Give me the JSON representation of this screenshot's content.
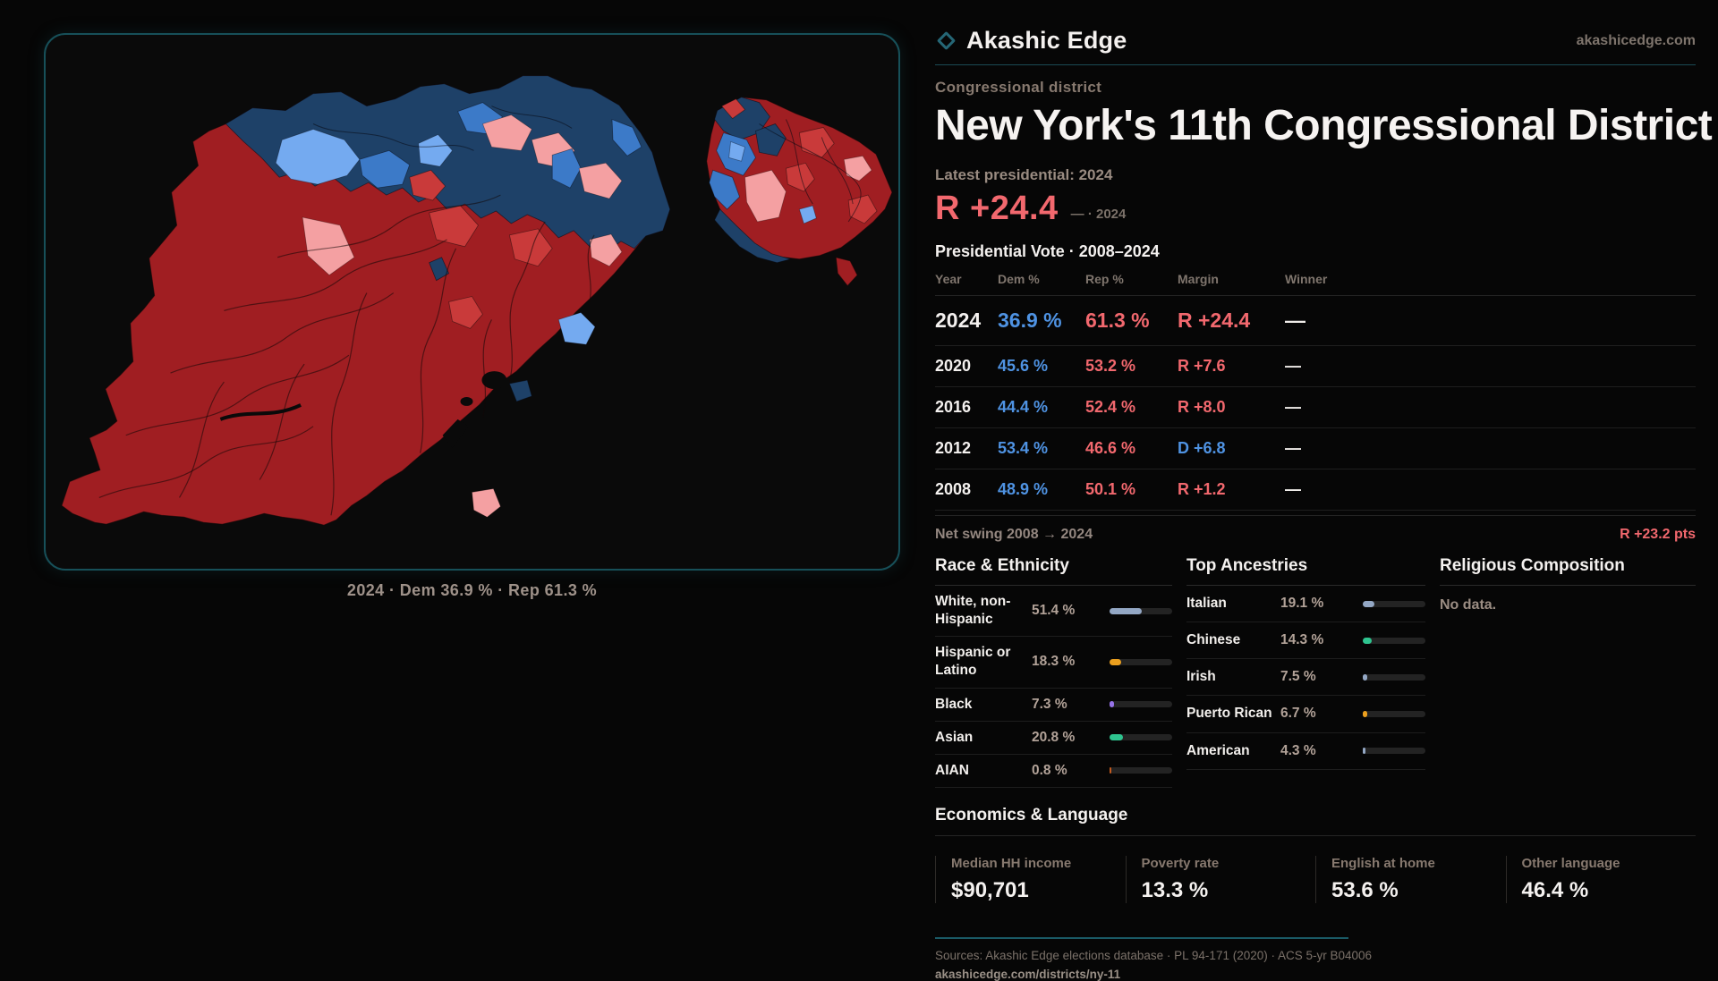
{
  "brand": {
    "name": "Akashic Edge",
    "domain": "akashicedge.com"
  },
  "page": {
    "eyebrow": "Congressional district",
    "title": "New York's 11th Congressional District",
    "latest_label": "Latest presidential: 2024",
    "headline_margin": "R +24.4",
    "headline_margin_note": "— · 2024"
  },
  "map": {
    "caption": "2024 · Dem 36.9 % · Rep 61.3 %"
  },
  "vote_table": {
    "title": "Presidential Vote · 2008–2024",
    "columns": [
      "Year",
      "Dem %",
      "Rep %",
      "Margin",
      "Winner"
    ],
    "rows": [
      {
        "year": "2024",
        "dem": "36.9 %",
        "rep": "61.3 %",
        "margin": "R +24.4",
        "margin_party": "R",
        "winner": "—",
        "emphasis": true
      },
      {
        "year": "2020",
        "dem": "45.6 %",
        "rep": "53.2 %",
        "margin": "R +7.6",
        "margin_party": "R",
        "winner": "—",
        "emphasis": false
      },
      {
        "year": "2016",
        "dem": "44.4 %",
        "rep": "52.4 %",
        "margin": "R +8.0",
        "margin_party": "R",
        "winner": "—",
        "emphasis": false
      },
      {
        "year": "2012",
        "dem": "53.4 %",
        "rep": "46.6 %",
        "margin": "D +6.8",
        "margin_party": "D",
        "winner": "—",
        "emphasis": false
      },
      {
        "year": "2008",
        "dem": "48.9 %",
        "rep": "50.1 %",
        "margin": "R +1.2",
        "margin_party": "R",
        "winner": "—",
        "emphasis": false
      }
    ],
    "net_swing_label": "Net swing 2008 → 2024",
    "net_swing_value": "R +23.2 pts"
  },
  "race_ethnicity": {
    "title": "Race & Ethnicity",
    "rows": [
      {
        "label": "White, non-Hispanic",
        "value": "51.4 %",
        "pct": 51.4,
        "color": "#93a7c4"
      },
      {
        "label": "Hispanic or Latino",
        "value": "18.3 %",
        "pct": 18.3,
        "color": "#eb9f1e"
      },
      {
        "label": "Black",
        "value": "7.3 %",
        "pct": 7.3,
        "color": "#9673e8"
      },
      {
        "label": "Asian",
        "value": "20.8 %",
        "pct": 20.8,
        "color": "#2ec48f"
      },
      {
        "label": "AIAN",
        "value": "0.8 %",
        "pct": 0.8,
        "color": "#c35a1f"
      }
    ]
  },
  "ancestries": {
    "title": "Top Ancestries",
    "rows": [
      {
        "label": "Italian",
        "value": "19.1 %",
        "pct": 19.1,
        "color": "#93a7c4"
      },
      {
        "label": "Chinese",
        "value": "14.3 %",
        "pct": 14.3,
        "color": "#2ec48f"
      },
      {
        "label": "Irish",
        "value": "7.5 %",
        "pct": 7.5,
        "color": "#93a7c4"
      },
      {
        "label": "Puerto Rican",
        "value": "6.7 %",
        "pct": 6.7,
        "color": "#eb9f1e"
      },
      {
        "label": "American",
        "value": "4.3 %",
        "pct": 4.3,
        "color": "#93a7c4"
      }
    ]
  },
  "religion": {
    "title": "Religious Composition",
    "empty": "No data."
  },
  "economics": {
    "title": "Economics & Language",
    "stats": [
      {
        "label": "Median HH income",
        "value": "$90,701"
      },
      {
        "label": "Poverty rate",
        "value": "13.3 %"
      },
      {
        "label": "English at home",
        "value": "53.6 %"
      },
      {
        "label": "Other language",
        "value": "46.4 %"
      }
    ]
  },
  "footer": {
    "sources": "Sources: Akashic Edge elections database · PL 94-171 (2020) · ACS 5-yr B04006",
    "permalink": "akashicedge.com/districts/ny-11"
  },
  "colors": {
    "accent_teal": "#175059",
    "dem_blue": "#4f93e3",
    "rep_red": "#f2686e",
    "map_dark_red": "#a01e22",
    "map_mid_red": "#c93a3a",
    "map_salmon": "#f4a0a2",
    "map_dark_navy": "#1e4168",
    "map_mid_blue": "#3c7ac8",
    "map_light_blue": "#74aaf0"
  }
}
